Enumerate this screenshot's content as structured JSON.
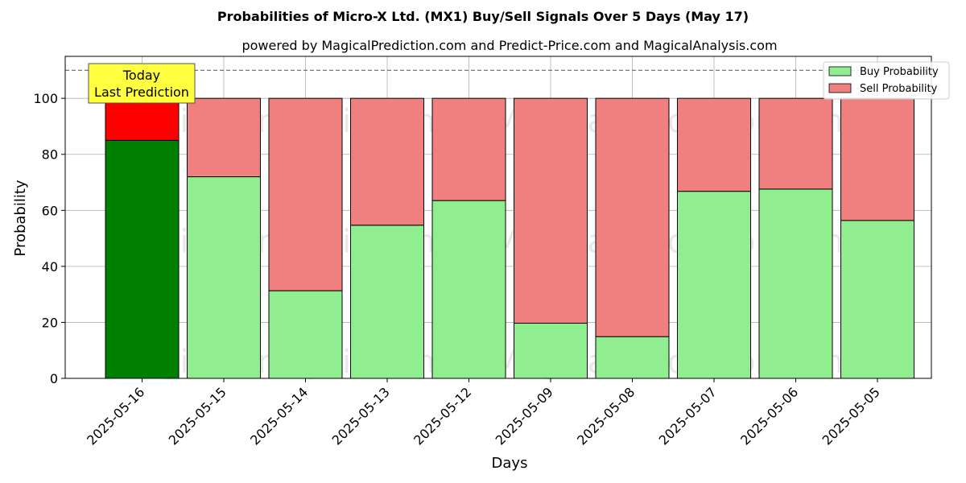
{
  "chart_data": {
    "type": "bar",
    "stacked": true,
    "title": "Probabilities of Micro-X Ltd. (MX1) Buy/Sell Signals Over 5 Days (May 17)",
    "subtitle": "powered by MagicalPrediction.com and Predict-Price.com and MagicalAnalysis.com",
    "xlabel": "Days",
    "ylabel": "Probability",
    "ylim": [
      0,
      115
    ],
    "yticks": [
      0,
      20,
      40,
      60,
      80,
      100
    ],
    "grid": true,
    "threshold_line": 110,
    "categories": [
      "2025-05-16",
      "2025-05-15",
      "2025-05-14",
      "2025-05-13",
      "2025-05-12",
      "2025-05-09",
      "2025-05-08",
      "2025-05-07",
      "2025-05-06",
      "2025-05-05"
    ],
    "series": [
      {
        "name": "Buy Probability",
        "values": [
          85,
          72,
          31.3,
          54.7,
          63.5,
          19.7,
          14.9,
          66.8,
          67.6,
          56.4
        ]
      },
      {
        "name": "Sell Probability",
        "values": [
          15,
          28,
          68.7,
          45.3,
          36.5,
          80.3,
          85.1,
          33.2,
          32.4,
          43.6
        ]
      }
    ],
    "colors": {
      "buy": "#90ee90",
      "sell": "#f08080",
      "buy_highlight": "#008000",
      "sell_highlight": "#ff0000",
      "annotation_bg": "#ffff40"
    },
    "legend": {
      "placement": "top-right",
      "entries": [
        "Buy Probability",
        "Sell Probability"
      ]
    },
    "annotation": {
      "line1": "Today",
      "line2": "Last Prediction"
    },
    "watermarks": [
      "MagicalAnalysis.com",
      "MagicalPrediction.com"
    ]
  }
}
